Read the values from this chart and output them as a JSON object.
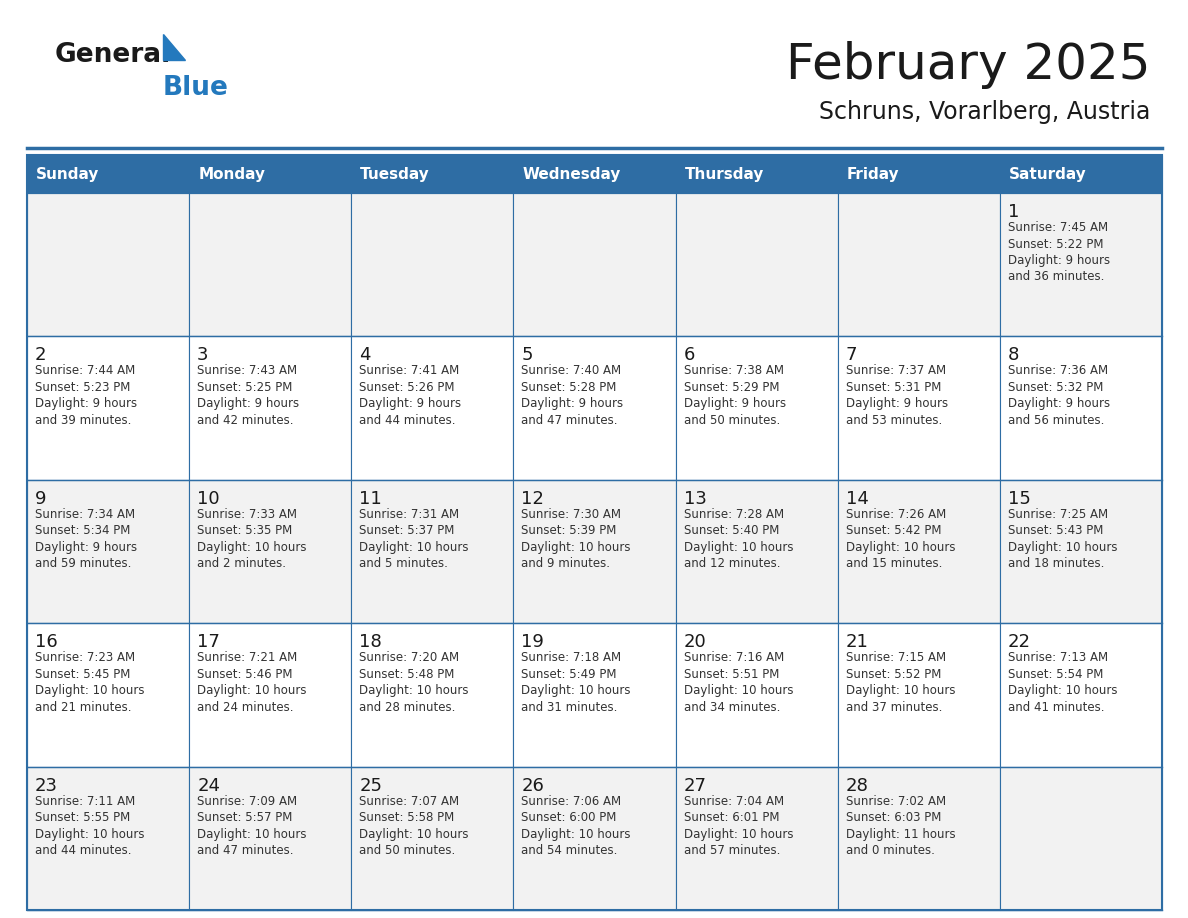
{
  "title": "February 2025",
  "subtitle": "Schruns, Vorarlberg, Austria",
  "header_bg": "#2E6DA4",
  "header_text_color": "#FFFFFF",
  "cell_bg_even": "#F2F2F2",
  "cell_bg_odd": "#FFFFFF",
  "border_color": "#2E6DA4",
  "text_color": "#333333",
  "days_of_week": [
    "Sunday",
    "Monday",
    "Tuesday",
    "Wednesday",
    "Thursday",
    "Friday",
    "Saturday"
  ],
  "calendar_data": [
    [
      {
        "day": null,
        "sunrise": null,
        "sunset": null,
        "daylight": null
      },
      {
        "day": null,
        "sunrise": null,
        "sunset": null,
        "daylight": null
      },
      {
        "day": null,
        "sunrise": null,
        "sunset": null,
        "daylight": null
      },
      {
        "day": null,
        "sunrise": null,
        "sunset": null,
        "daylight": null
      },
      {
        "day": null,
        "sunrise": null,
        "sunset": null,
        "daylight": null
      },
      {
        "day": null,
        "sunrise": null,
        "sunset": null,
        "daylight": null
      },
      {
        "day": 1,
        "sunrise": "7:45 AM",
        "sunset": "5:22 PM",
        "daylight": "9 hours\nand 36 minutes."
      }
    ],
    [
      {
        "day": 2,
        "sunrise": "7:44 AM",
        "sunset": "5:23 PM",
        "daylight": "9 hours\nand 39 minutes."
      },
      {
        "day": 3,
        "sunrise": "7:43 AM",
        "sunset": "5:25 PM",
        "daylight": "9 hours\nand 42 minutes."
      },
      {
        "day": 4,
        "sunrise": "7:41 AM",
        "sunset": "5:26 PM",
        "daylight": "9 hours\nand 44 minutes."
      },
      {
        "day": 5,
        "sunrise": "7:40 AM",
        "sunset": "5:28 PM",
        "daylight": "9 hours\nand 47 minutes."
      },
      {
        "day": 6,
        "sunrise": "7:38 AM",
        "sunset": "5:29 PM",
        "daylight": "9 hours\nand 50 minutes."
      },
      {
        "day": 7,
        "sunrise": "7:37 AM",
        "sunset": "5:31 PM",
        "daylight": "9 hours\nand 53 minutes."
      },
      {
        "day": 8,
        "sunrise": "7:36 AM",
        "sunset": "5:32 PM",
        "daylight": "9 hours\nand 56 minutes."
      }
    ],
    [
      {
        "day": 9,
        "sunrise": "7:34 AM",
        "sunset": "5:34 PM",
        "daylight": "9 hours\nand 59 minutes."
      },
      {
        "day": 10,
        "sunrise": "7:33 AM",
        "sunset": "5:35 PM",
        "daylight": "10 hours\nand 2 minutes."
      },
      {
        "day": 11,
        "sunrise": "7:31 AM",
        "sunset": "5:37 PM",
        "daylight": "10 hours\nand 5 minutes."
      },
      {
        "day": 12,
        "sunrise": "7:30 AM",
        "sunset": "5:39 PM",
        "daylight": "10 hours\nand 9 minutes."
      },
      {
        "day": 13,
        "sunrise": "7:28 AM",
        "sunset": "5:40 PM",
        "daylight": "10 hours\nand 12 minutes."
      },
      {
        "day": 14,
        "sunrise": "7:26 AM",
        "sunset": "5:42 PM",
        "daylight": "10 hours\nand 15 minutes."
      },
      {
        "day": 15,
        "sunrise": "7:25 AM",
        "sunset": "5:43 PM",
        "daylight": "10 hours\nand 18 minutes."
      }
    ],
    [
      {
        "day": 16,
        "sunrise": "7:23 AM",
        "sunset": "5:45 PM",
        "daylight": "10 hours\nand 21 minutes."
      },
      {
        "day": 17,
        "sunrise": "7:21 AM",
        "sunset": "5:46 PM",
        "daylight": "10 hours\nand 24 minutes."
      },
      {
        "day": 18,
        "sunrise": "7:20 AM",
        "sunset": "5:48 PM",
        "daylight": "10 hours\nand 28 minutes."
      },
      {
        "day": 19,
        "sunrise": "7:18 AM",
        "sunset": "5:49 PM",
        "daylight": "10 hours\nand 31 minutes."
      },
      {
        "day": 20,
        "sunrise": "7:16 AM",
        "sunset": "5:51 PM",
        "daylight": "10 hours\nand 34 minutes."
      },
      {
        "day": 21,
        "sunrise": "7:15 AM",
        "sunset": "5:52 PM",
        "daylight": "10 hours\nand 37 minutes."
      },
      {
        "day": 22,
        "sunrise": "7:13 AM",
        "sunset": "5:54 PM",
        "daylight": "10 hours\nand 41 minutes."
      }
    ],
    [
      {
        "day": 23,
        "sunrise": "7:11 AM",
        "sunset": "5:55 PM",
        "daylight": "10 hours\nand 44 minutes."
      },
      {
        "day": 24,
        "sunrise": "7:09 AM",
        "sunset": "5:57 PM",
        "daylight": "10 hours\nand 47 minutes."
      },
      {
        "day": 25,
        "sunrise": "7:07 AM",
        "sunset": "5:58 PM",
        "daylight": "10 hours\nand 50 minutes."
      },
      {
        "day": 26,
        "sunrise": "7:06 AM",
        "sunset": "6:00 PM",
        "daylight": "10 hours\nand 54 minutes."
      },
      {
        "day": 27,
        "sunrise": "7:04 AM",
        "sunset": "6:01 PM",
        "daylight": "10 hours\nand 57 minutes."
      },
      {
        "day": 28,
        "sunrise": "7:02 AM",
        "sunset": "6:03 PM",
        "daylight": "11 hours\nand 0 minutes."
      },
      {
        "day": null,
        "sunrise": null,
        "sunset": null,
        "daylight": null
      }
    ]
  ],
  "logo_color_general": "#1A1A1A",
  "logo_color_blue": "#2479BD",
  "logo_triangle_color": "#2479BD",
  "title_fontsize": 36,
  "subtitle_fontsize": 17,
  "header_fontsize": 11,
  "day_number_fontsize": 13,
  "cell_text_fontsize": 8.5
}
